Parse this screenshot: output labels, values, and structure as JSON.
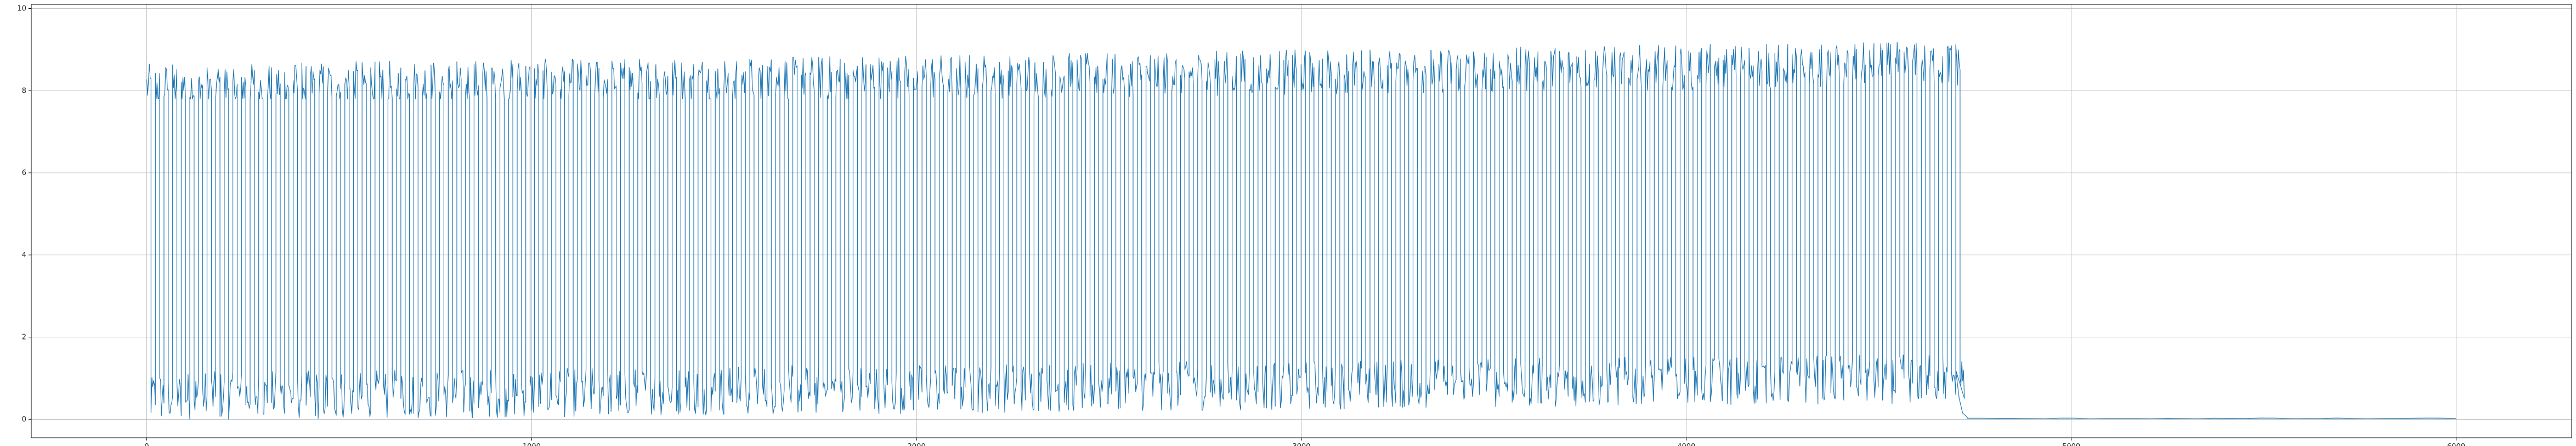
{
  "chart_data": {
    "type": "line",
    "title": "",
    "xlabel": "",
    "ylabel": "",
    "xlim": [
      -300,
      6300
    ],
    "ylim": [
      -0.45,
      10.1
    ],
    "x_ticks": [
      0,
      1000,
      2000,
      3000,
      4000,
      5000,
      6000
    ],
    "y_ticks": [
      0,
      2,
      4,
      6,
      8,
      10
    ],
    "x_tick_labels": [
      "0",
      "1000",
      "2000",
      "3000",
      "4000",
      "5000",
      "6000"
    ],
    "y_tick_labels": [
      "0",
      "2",
      "4",
      "6",
      "8",
      "10"
    ],
    "grid": true,
    "legend": "none",
    "series": [
      {
        "color": "#1f77b4",
        "pattern": "square-wave oscillation",
        "oscillation_x_range": [
          0,
          4700
        ],
        "high_level_range": [
          7.8,
          9.5
        ],
        "low_level_range": [
          0.0,
          1.9
        ],
        "approx_cycle_count": 210,
        "decay_x_range": [
          4700,
          4730
        ],
        "flat_tail": {
          "x_range": [
            4730,
            6000
          ],
          "y": 0.02
        }
      }
    ]
  },
  "colors": {
    "series": "#1f77b4",
    "grid": "#b0b0b0",
    "axes": "#000000",
    "text": "#262626"
  }
}
